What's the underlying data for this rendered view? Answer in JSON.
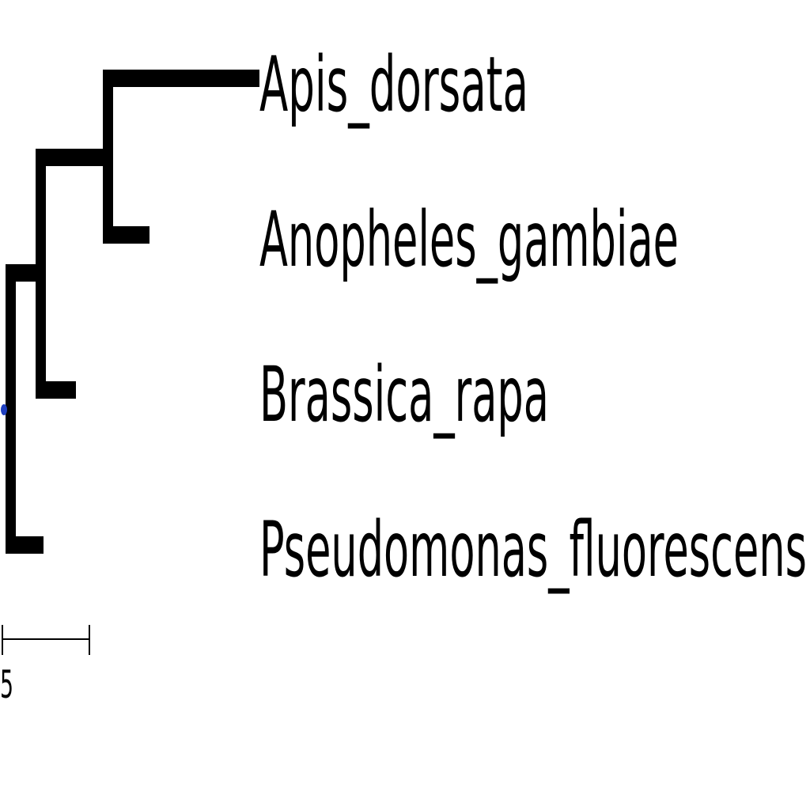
{
  "tree": {
    "leaves": [
      {
        "id": "leaf-apis",
        "label": "Apis_dorsata"
      },
      {
        "id": "leaf-anopheles",
        "label": "Anopheles_gambiae"
      },
      {
        "id": "leaf-brassica",
        "label": "Brassica_rapa"
      },
      {
        "id": "leaf-pseudomonas",
        "label": "Pseudomonas_fluorescens"
      }
    ],
    "scale_bar": {
      "label": "5"
    },
    "colors": {
      "branch": "#000000",
      "root_marker": "#1f3fbf"
    }
  }
}
